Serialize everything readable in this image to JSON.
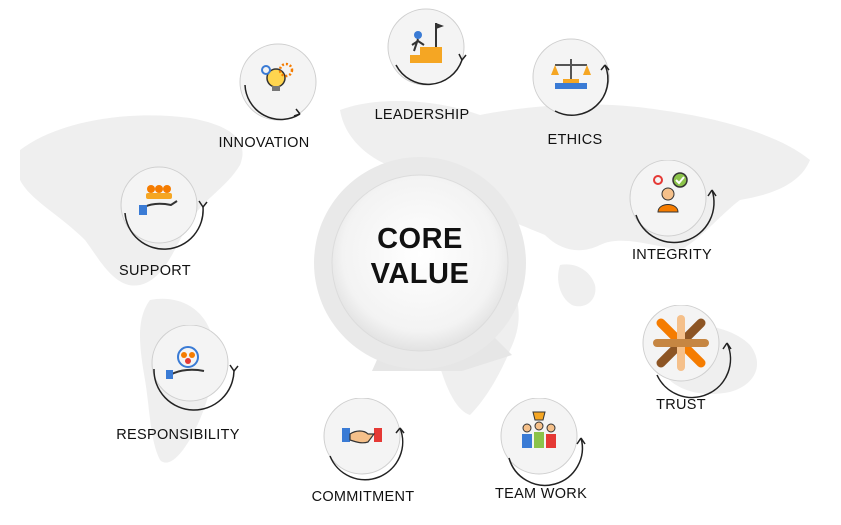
{
  "center": {
    "line1": "CORE",
    "line2": "VALUE"
  },
  "values": [
    {
      "key": "leadership",
      "label": "LEADERSHIP",
      "icon": "leadership-icon"
    },
    {
      "key": "ethics",
      "label": "ETHICS",
      "icon": "scales-icon"
    },
    {
      "key": "integrity",
      "label": "INTEGRITY",
      "icon": "integrity-icon"
    },
    {
      "key": "trust",
      "label": "TRUST",
      "icon": "trust-hands-icon"
    },
    {
      "key": "teamwork",
      "label": "TEAM WORK",
      "icon": "teamwork-icon"
    },
    {
      "key": "commitment",
      "label": "COMMITMENT",
      "icon": "handshake-icon"
    },
    {
      "key": "responsibility",
      "label": "RESPONSIBILITY",
      "icon": "responsibility-icon"
    },
    {
      "key": "support",
      "label": "SUPPORT",
      "icon": "support-icon"
    },
    {
      "key": "innovation",
      "label": "INNOVATION",
      "icon": "innovation-icon"
    }
  ],
  "colors": {
    "text": "#111111",
    "map": "#eeeeee",
    "ring": "#222222",
    "circle": "#f4f4f4"
  }
}
